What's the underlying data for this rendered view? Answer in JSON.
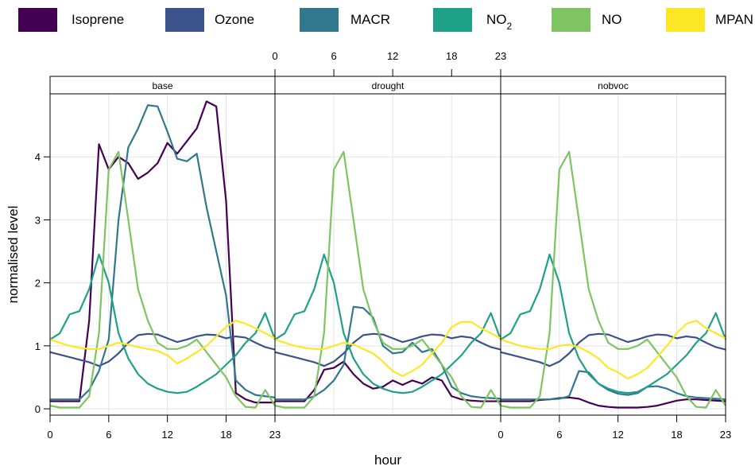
{
  "chart_data": {
    "type": "line",
    "xlabel": "hour",
    "ylabel": "normalised level",
    "xlim": [
      0,
      23
    ],
    "ylim": [
      -0.1,
      5.0
    ],
    "x_ticks": [
      0,
      6,
      12,
      18,
      23
    ],
    "y_ticks": [
      0,
      1,
      2,
      3,
      4
    ],
    "grid": true,
    "legend_position": "top",
    "panels": [
      "base",
      "drought",
      "nobvoc"
    ],
    "x": [
      0,
      1,
      2,
      3,
      4,
      5,
      6,
      7,
      8,
      9,
      10,
      11,
      12,
      13,
      14,
      15,
      16,
      17,
      18,
      19,
      20,
      21,
      22,
      23
    ],
    "series": [
      {
        "name": "Isoprene",
        "color": "#440154",
        "panels": {
          "base": [
            0.12,
            0.12,
            0.12,
            0.12,
            1.4,
            4.2,
            3.8,
            4.0,
            3.9,
            3.65,
            3.75,
            3.9,
            4.22,
            4.05,
            4.25,
            4.45,
            4.88,
            4.8,
            3.3,
            0.25,
            0.15,
            0.1,
            0.1,
            0.1
          ],
          "drought": [
            0.12,
            0.12,
            0.12,
            0.12,
            0.3,
            0.62,
            0.65,
            0.75,
            0.55,
            0.4,
            0.32,
            0.35,
            0.45,
            0.38,
            0.45,
            0.4,
            0.5,
            0.45,
            0.2,
            0.15,
            0.13,
            0.12,
            0.12,
            0.12
          ],
          "nobvoc": [
            0.12,
            0.12,
            0.12,
            0.12,
            0.14,
            0.15,
            0.17,
            0.18,
            0.16,
            0.1,
            0.05,
            0.03,
            0.02,
            0.02,
            0.02,
            0.03,
            0.05,
            0.09,
            0.13,
            0.15,
            0.15,
            0.14,
            0.13,
            0.12
          ]
        }
      },
      {
        "name": "Ozone",
        "color": "#3b528b",
        "panels": {
          "base": [
            0.9,
            0.86,
            0.82,
            0.78,
            0.74,
            0.68,
            0.75,
            0.88,
            1.05,
            1.17,
            1.19,
            1.18,
            1.12,
            1.06,
            1.1,
            1.15,
            1.18,
            1.17,
            1.12,
            1.15,
            1.13,
            1.05,
            0.98,
            0.94
          ],
          "drought": [
            0.9,
            0.86,
            0.82,
            0.78,
            0.74,
            0.68,
            0.75,
            0.88,
            1.05,
            1.17,
            1.19,
            1.18,
            1.12,
            1.06,
            1.1,
            1.15,
            1.18,
            1.17,
            1.12,
            1.15,
            1.13,
            1.05,
            0.98,
            0.94
          ],
          "nobvoc": [
            0.9,
            0.86,
            0.82,
            0.78,
            0.74,
            0.68,
            0.75,
            0.88,
            1.05,
            1.17,
            1.19,
            1.18,
            1.12,
            1.06,
            1.1,
            1.15,
            1.18,
            1.17,
            1.12,
            1.15,
            1.13,
            1.05,
            0.98,
            0.94
          ]
        }
      },
      {
        "name": "MACR",
        "color": "#31788e",
        "panels": {
          "base": [
            0.15,
            0.15,
            0.15,
            0.15,
            0.3,
            0.6,
            1.1,
            3.0,
            4.15,
            4.45,
            4.82,
            4.8,
            4.4,
            3.97,
            3.93,
            4.05,
            3.2,
            2.5,
            1.8,
            0.45,
            0.3,
            0.22,
            0.2,
            0.18
          ],
          "drought": [
            0.15,
            0.15,
            0.15,
            0.15,
            0.2,
            0.3,
            0.45,
            0.7,
            1.62,
            1.6,
            1.45,
            1.0,
            0.88,
            0.9,
            1.05,
            0.9,
            0.95,
            0.7,
            0.35,
            0.25,
            0.2,
            0.18,
            0.17,
            0.16
          ],
          "nobvoc": [
            0.15,
            0.15,
            0.15,
            0.15,
            0.15,
            0.15,
            0.16,
            0.2,
            0.6,
            0.58,
            0.4,
            0.3,
            0.24,
            0.22,
            0.25,
            0.35,
            0.36,
            0.32,
            0.25,
            0.2,
            0.18,
            0.17,
            0.16,
            0.15
          ]
        }
      },
      {
        "name": "NO2",
        "color": "#1fa088",
        "panels": {
          "base": [
            1.1,
            1.2,
            1.5,
            1.55,
            1.9,
            2.45,
            2.0,
            1.2,
            0.8,
            0.55,
            0.4,
            0.32,
            0.27,
            0.25,
            0.27,
            0.35,
            0.45,
            0.55,
            0.7,
            0.85,
            1.05,
            1.2,
            1.52,
            1.1
          ],
          "drought": [
            1.1,
            1.2,
            1.5,
            1.55,
            1.9,
            2.45,
            2.0,
            1.2,
            0.8,
            0.55,
            0.4,
            0.32,
            0.27,
            0.25,
            0.27,
            0.35,
            0.45,
            0.55,
            0.7,
            0.85,
            1.05,
            1.2,
            1.52,
            1.1
          ],
          "nobvoc": [
            1.1,
            1.2,
            1.5,
            1.55,
            1.9,
            2.45,
            2.0,
            1.2,
            0.8,
            0.55,
            0.4,
            0.32,
            0.27,
            0.25,
            0.27,
            0.35,
            0.45,
            0.55,
            0.7,
            0.85,
            1.05,
            1.2,
            1.52,
            1.1
          ]
        }
      },
      {
        "name": "NO",
        "color": "#7ec463",
        "panels": {
          "base": [
            0.05,
            0.02,
            0.02,
            0.02,
            0.2,
            1.2,
            3.8,
            4.08,
            3.0,
            1.9,
            1.4,
            1.05,
            0.95,
            0.95,
            1.0,
            1.1,
            0.9,
            0.7,
            0.5,
            0.2,
            0.03,
            0.02,
            0.3,
            0.05
          ],
          "drought": [
            0.05,
            0.02,
            0.02,
            0.02,
            0.2,
            1.2,
            3.8,
            4.08,
            3.0,
            1.9,
            1.4,
            1.05,
            0.95,
            0.95,
            1.0,
            1.1,
            0.9,
            0.7,
            0.5,
            0.2,
            0.03,
            0.02,
            0.3,
            0.05
          ],
          "nobvoc": [
            0.05,
            0.02,
            0.02,
            0.02,
            0.2,
            1.2,
            3.8,
            4.08,
            3.0,
            1.9,
            1.4,
            1.05,
            0.95,
            0.95,
            1.0,
            1.1,
            0.9,
            0.7,
            0.5,
            0.2,
            0.03,
            0.02,
            0.3,
            0.05
          ]
        }
      },
      {
        "name": "MPAN",
        "color": "#fde725",
        "panels": {
          "base": [
            1.1,
            1.05,
            1.0,
            0.97,
            0.95,
            0.95,
            1.0,
            1.05,
            1.02,
            0.98,
            0.95,
            0.92,
            0.85,
            0.72,
            0.8,
            0.9,
            1.0,
            1.15,
            1.3,
            1.4,
            1.35,
            1.28,
            1.2,
            1.12
          ],
          "drought": [
            1.1,
            1.05,
            1.0,
            0.97,
            0.95,
            0.95,
            1.0,
            1.05,
            1.02,
            0.95,
            0.88,
            0.75,
            0.6,
            0.52,
            0.6,
            0.7,
            0.88,
            1.05,
            1.3,
            1.38,
            1.38,
            1.28,
            1.2,
            1.12
          ],
          "nobvoc": [
            1.1,
            1.05,
            1.0,
            0.97,
            0.95,
            0.95,
            1.0,
            1.02,
            0.98,
            0.9,
            0.8,
            0.65,
            0.58,
            0.48,
            0.55,
            0.65,
            0.82,
            1.0,
            1.2,
            1.35,
            1.4,
            1.28,
            1.2,
            1.12
          ]
        }
      }
    ]
  }
}
